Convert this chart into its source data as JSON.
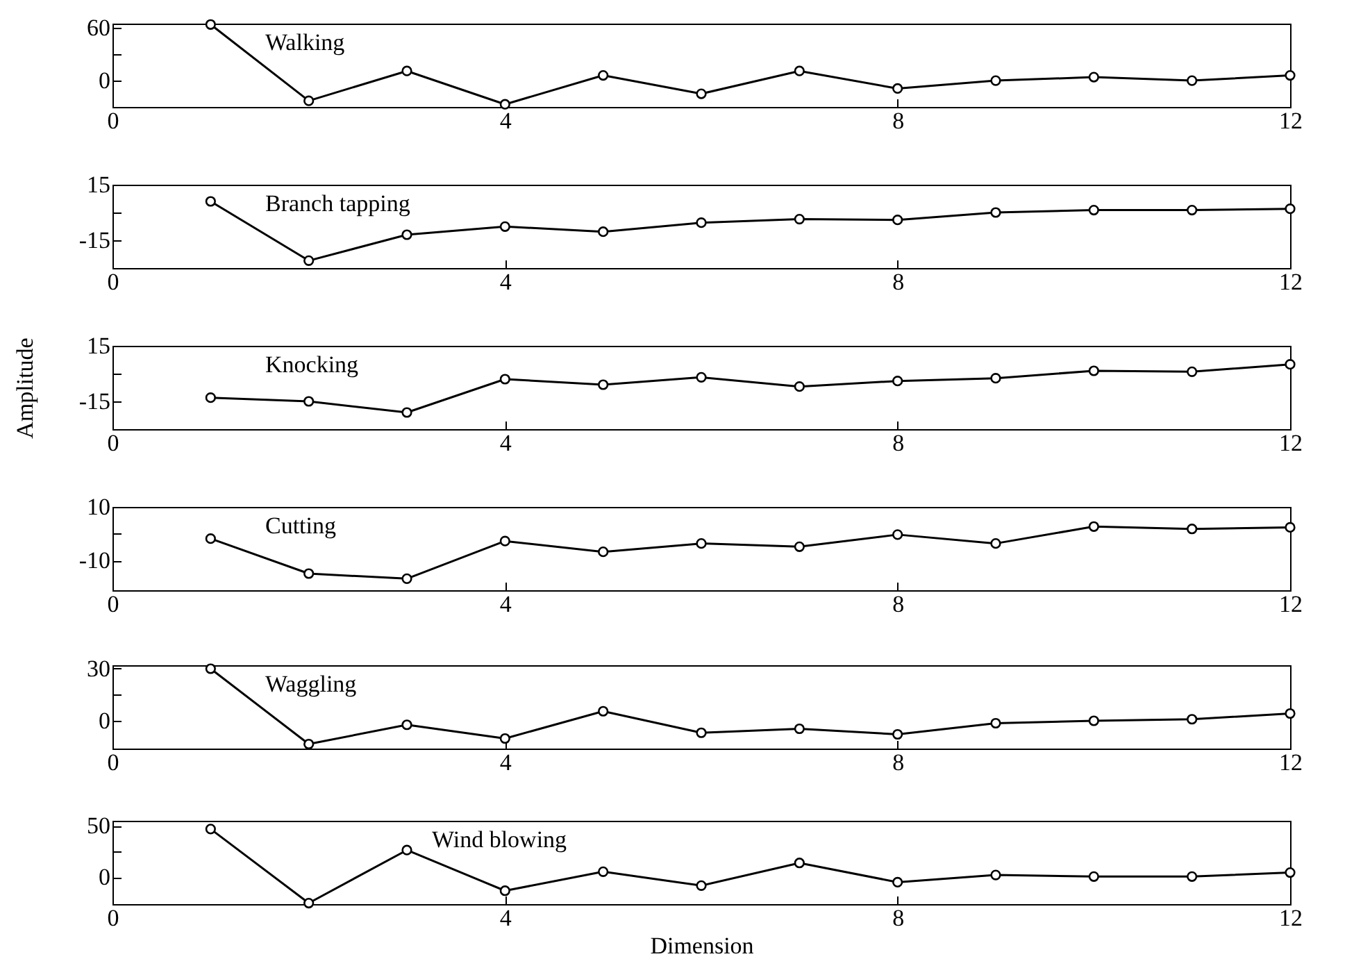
{
  "chart_data": [
    {
      "type": "line",
      "marker": "circle",
      "line_style": "solid",
      "grid": false,
      "x": [
        1,
        2,
        3,
        4,
        5,
        6,
        7,
        8,
        9,
        10,
        11,
        12
      ],
      "xlim": [
        0,
        12
      ],
      "xticks": [
        0,
        4,
        8,
        12
      ],
      "ylim": [
        -30,
        65
      ],
      "yticks": [
        0,
        {
          "value": 30,
          "label": null
        },
        60
      ],
      "series": [
        {
          "name": "Walking",
          "color": "#000000",
          "values": [
            64,
            -23,
            11,
            -27,
            6,
            -15,
            11,
            -9,
            0,
            4,
            0,
            6
          ]
        }
      ]
    },
    {
      "type": "line",
      "marker": "circle",
      "line_style": "solid",
      "grid": false,
      "x": [
        1,
        2,
        3,
        4,
        5,
        6,
        7,
        8,
        9,
        10,
        11,
        12
      ],
      "xlim": [
        0,
        12
      ],
      "xticks": [
        0,
        4,
        8,
        12
      ],
      "ylim": [
        -30,
        15
      ],
      "yticks": [
        -15,
        {
          "value": 0,
          "label": null
        },
        15
      ],
      "series": [
        {
          "name": "Branch tapping",
          "color": "#000000",
          "values": [
            6,
            -26,
            -12,
            -7.6,
            -10.4,
            -5.5,
            -3.6,
            -4,
            0,
            1.3,
            1.3,
            2
          ]
        }
      ]
    },
    {
      "type": "line",
      "marker": "circle",
      "line_style": "solid",
      "grid": false,
      "x": [
        1,
        2,
        3,
        4,
        5,
        6,
        7,
        8,
        9,
        10,
        11,
        12
      ],
      "xlim": [
        0,
        12
      ],
      "xticks": [
        0,
        4,
        8,
        12
      ],
      "ylim": [
        -30,
        15
      ],
      "yticks": [
        -15,
        {
          "value": 0,
          "label": null
        },
        15
      ],
      "ylabel": "Amplitude",
      "series": [
        {
          "name": "Knocking",
          "color": "#000000",
          "values": [
            -13,
            -15,
            -21,
            -3,
            -6,
            -2,
            -7,
            -4,
            -2.5,
            1.5,
            1,
            5
          ]
        }
      ]
    },
    {
      "type": "line",
      "marker": "circle",
      "line_style": "solid",
      "grid": false,
      "x": [
        1,
        2,
        3,
        4,
        5,
        6,
        7,
        8,
        9,
        10,
        11,
        12
      ],
      "xlim": [
        0,
        12
      ],
      "xticks": [
        0,
        4,
        8,
        12
      ],
      "ylim": [
        -21,
        10
      ],
      "yticks": [
        -10,
        {
          "value": 0,
          "label": null
        },
        10
      ],
      "series": [
        {
          "name": "Cutting",
          "color": "#000000",
          "values": [
            -1.8,
            -14.8,
            -16.7,
            -2.7,
            -6.7,
            -3.6,
            -4.8,
            -0.3,
            -3.6,
            2.7,
            1.8,
            2.4
          ]
        }
      ]
    },
    {
      "type": "line",
      "marker": "circle",
      "line_style": "solid",
      "grid": false,
      "x": [
        1,
        2,
        3,
        4,
        5,
        6,
        7,
        8,
        9,
        10,
        11,
        12
      ],
      "xlim": [
        0,
        12
      ],
      "xticks": [
        0,
        4,
        8,
        12
      ],
      "ylim": [
        -16,
        32
      ],
      "yticks": [
        0,
        {
          "value": 15,
          "label": null
        },
        30
      ],
      "series": [
        {
          "name": "Waggling",
          "color": "#000000",
          "values": [
            30,
            -13.4,
            -2.3,
            -10.2,
            5.5,
            -6.9,
            -4.6,
            -7.8,
            -1.4,
            0,
            0.9,
            4.2
          ]
        }
      ]
    },
    {
      "type": "line",
      "marker": "circle",
      "line_style": "solid",
      "grid": false,
      "x": [
        1,
        2,
        3,
        4,
        5,
        6,
        7,
        8,
        9,
        10,
        11,
        12
      ],
      "xlim": [
        0,
        12
      ],
      "xticks": [
        0,
        4,
        8,
        12
      ],
      "ylim": [
        -26,
        55
      ],
      "yticks": [
        0,
        {
          "value": 25,
          "label": null
        },
        50
      ],
      "xlabel": "Dimension",
      "series": [
        {
          "name": "Wind blowing",
          "color": "#000000",
          "values": [
            47,
            -25,
            26.5,
            -13,
            5.5,
            -8,
            14,
            -4.7,
            2.3,
            0.8,
            0.8,
            4.7
          ]
        }
      ]
    }
  ]
}
